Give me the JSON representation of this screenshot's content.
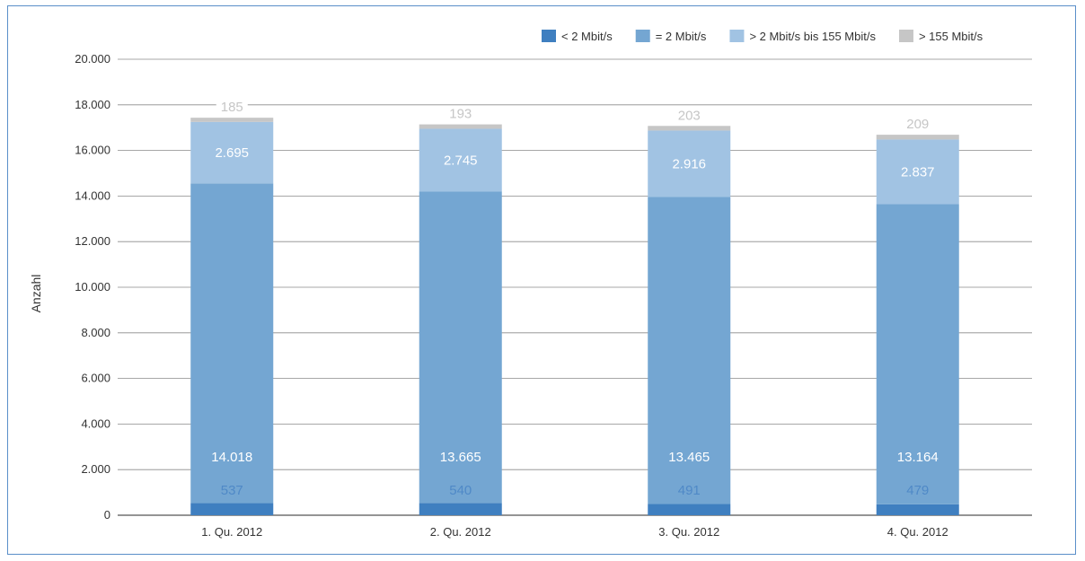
{
  "chart_data": {
    "type": "bar",
    "stacked": true,
    "categories": [
      "1. Qu. 2012",
      "2. Qu. 2012",
      "3. Qu. 2012",
      "4. Qu. 2012"
    ],
    "series": [
      {
        "name": "< 2 Mbit/s",
        "values": [
          537,
          540,
          491,
          479
        ],
        "color": "#3f7fc0",
        "label_color": "#4f89c7"
      },
      {
        "name": "= 2 Mbit/s",
        "values": [
          14018,
          13665,
          13465,
          13164
        ],
        "color": "#74a6d2",
        "label_color": "#ffffff"
      },
      {
        "name": "> 2 Mbit/s bis 155 Mbit/s",
        "values": [
          2695,
          2745,
          2916,
          2837
        ],
        "color": "#a1c3e3",
        "label_color": "#ffffff"
      },
      {
        "name": "> 155 Mbit/s",
        "values": [
          185,
          193,
          203,
          209
        ],
        "color": "#c6c6c6",
        "label_color": "#c6c6c6"
      }
    ],
    "data_labels": [
      [
        "537",
        "540",
        "491",
        "479"
      ],
      [
        "14.018",
        "13.665",
        "13.465",
        "13.164"
      ],
      [
        "2.695",
        "2.745",
        "2.916",
        "2.837"
      ],
      [
        "185",
        "193",
        "203",
        "209"
      ]
    ],
    "ylabel": "Anzahl",
    "xlabel": "",
    "ylim": [
      0,
      20000
    ],
    "yticks": [
      0,
      2000,
      4000,
      6000,
      8000,
      10000,
      12000,
      14000,
      16000,
      18000,
      20000
    ],
    "ytick_labels": [
      "0",
      "2.000",
      "4.000",
      "6.000",
      "8.000",
      "10.000",
      "12.000",
      "14.000",
      "16.000",
      "18.000",
      "20.000"
    ],
    "grid": true,
    "legend_position": "top-right"
  }
}
